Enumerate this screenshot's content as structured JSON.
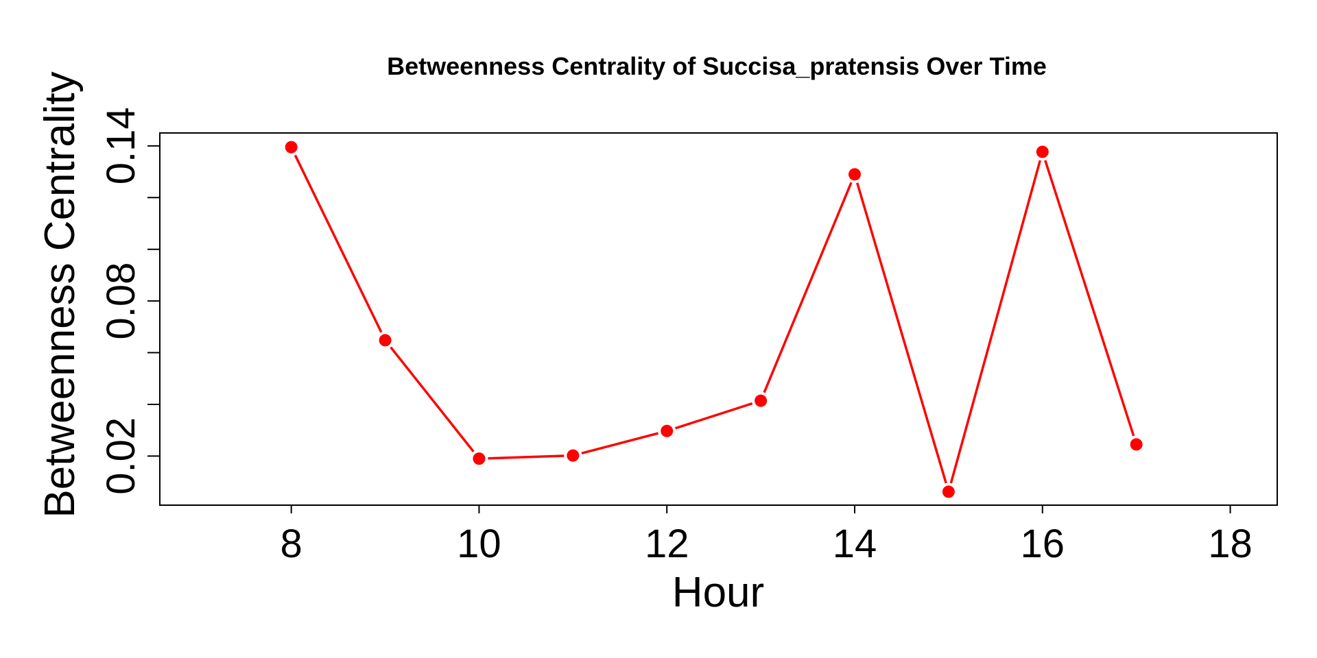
{
  "chart_data": {
    "type": "line",
    "title": "Betweenness Centrality of Succisa_pratensis Over Time",
    "xlabel": "Hour",
    "ylabel": "Betweenness Centrality",
    "xlim": [
      6.6,
      18.5
    ],
    "ylim": [
      0.001,
      0.145
    ],
    "x_ticks": [
      8,
      10,
      12,
      14,
      16,
      18
    ],
    "x_tick_labels": [
      "8",
      "10",
      "12",
      "14",
      "16",
      "18"
    ],
    "y_ticks": [
      0.02,
      0.04,
      0.06,
      0.08,
      0.1,
      0.12,
      0.14
    ],
    "y_tick_labels": [
      "0.02",
      "",
      "",
      "0.08",
      "",
      "",
      "0.14"
    ],
    "grid": false,
    "legend": "none",
    "series": [
      {
        "name": "Succisa_pratensis",
        "color": "#ff0000",
        "x": [
          8,
          9,
          10,
          11,
          12,
          13,
          14,
          15,
          16,
          17
        ],
        "values": [
          0.1395,
          0.0648,
          0.019,
          0.0202,
          0.0297,
          0.0414,
          0.129,
          0.0062,
          0.1377,
          0.0245
        ]
      }
    ]
  }
}
